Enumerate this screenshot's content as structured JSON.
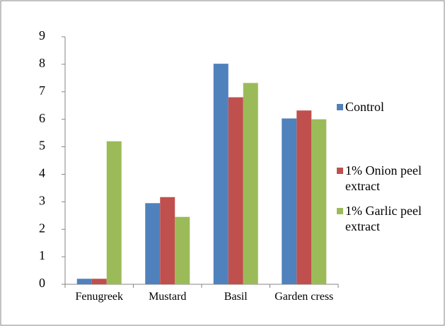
{
  "chart_data": {
    "type": "bar",
    "categories": [
      "Fenugreek",
      "Mustard",
      "Basil",
      "Garden cress"
    ],
    "series": [
      {
        "name": "Control",
        "color": "#4f81bd",
        "values": [
          0.2,
          2.95,
          8.02,
          6.03
        ]
      },
      {
        "name": "1% Onion peel extract",
        "color": "#c0504d",
        "values": [
          0.2,
          3.17,
          6.8,
          6.32
        ]
      },
      {
        "name": "1% Garlic peel extract",
        "color": "#9bbb59",
        "values": [
          5.2,
          2.45,
          7.32,
          6.0
        ]
      }
    ],
    "ylim": [
      0,
      9
    ],
    "yticks": [
      0,
      1,
      2,
      3,
      4,
      5,
      6,
      7,
      8,
      9
    ],
    "grid": false,
    "legend": "right"
  }
}
